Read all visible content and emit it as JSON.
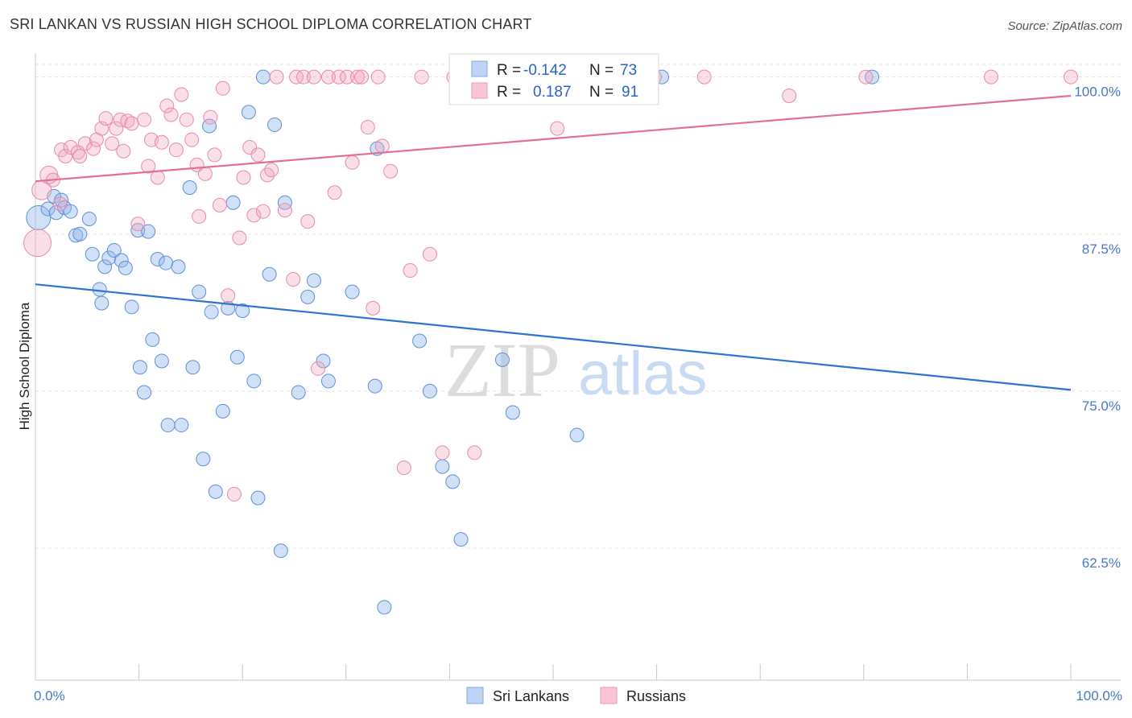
{
  "title": "SRI LANKAN VS RUSSIAN HIGH SCHOOL DIPLOMA CORRELATION CHART",
  "source": "Source: ZipAtlas.com",
  "watermark": {
    "zip": "ZIP",
    "atlas": "atlas"
  },
  "legend": {
    "r_label": "R =",
    "n_label": "N =",
    "series": [
      {
        "name": "Sri Lankans",
        "r": "-0.142",
        "n": "73"
      },
      {
        "name": "Russians",
        "r": "0.187",
        "n": "91"
      }
    ]
  },
  "chart_data": {
    "type": "scatter",
    "title": "SRI LANKAN VS RUSSIAN HIGH SCHOOL DIPLOMA CORRELATION CHART",
    "xlabel": "",
    "ylabel": "High School Diploma",
    "xlim": [
      0,
      100
    ],
    "ylim": [
      52,
      101
    ],
    "x_tick_labels": [
      {
        "value": 0,
        "label": "0.0%"
      },
      {
        "value": 100,
        "label": "100.0%"
      }
    ],
    "y_ticks": [
      {
        "value": 100,
        "label": "100.0%"
      },
      {
        "value": 87.5,
        "label": "87.5%"
      },
      {
        "value": 75,
        "label": "75.0%"
      },
      {
        "value": 62.5,
        "label": "62.5%"
      }
    ],
    "grid": true,
    "colors": {
      "sri_lankans": "#8fb6ea",
      "russians": "#f3a8c2",
      "sri_line": "#2e72d2",
      "rus_line": "#e0709a"
    },
    "series": [
      {
        "name": "Sri Lankans",
        "trend": {
          "x": [
            0,
            100
          ],
          "y": [
            83.5,
            75.1
          ]
        },
        "points": [
          [
            0.3,
            88.8
          ],
          [
            1.2,
            89.5
          ],
          [
            1.8,
            90.5
          ],
          [
            2.0,
            89.2
          ],
          [
            2.5,
            90.2
          ],
          [
            2.8,
            89.6
          ],
          [
            3.4,
            89.3
          ],
          [
            3.9,
            87.4
          ],
          [
            4.3,
            87.5
          ],
          [
            5.2,
            88.7
          ],
          [
            5.5,
            85.9
          ],
          [
            6.2,
            83.1
          ],
          [
            6.4,
            82.0
          ],
          [
            6.7,
            84.9
          ],
          [
            7.1,
            85.6
          ],
          [
            7.6,
            86.2
          ],
          [
            8.3,
            85.4
          ],
          [
            8.7,
            84.8
          ],
          [
            9.3,
            81.7
          ],
          [
            9.9,
            87.8
          ],
          [
            10.1,
            76.9
          ],
          [
            10.5,
            74.9
          ],
          [
            10.9,
            87.7
          ],
          [
            11.3,
            79.1
          ],
          [
            11.8,
            85.5
          ],
          [
            12.2,
            77.4
          ],
          [
            12.6,
            85.2
          ],
          [
            12.8,
            72.3
          ],
          [
            13.8,
            84.9
          ],
          [
            14.1,
            72.3
          ],
          [
            14.9,
            91.2
          ],
          [
            15.2,
            76.9
          ],
          [
            15.8,
            82.9
          ],
          [
            16.2,
            69.6
          ],
          [
            16.8,
            96.1
          ],
          [
            17.0,
            81.3
          ],
          [
            17.4,
            67.0
          ],
          [
            18.1,
            73.4
          ],
          [
            18.6,
            81.6
          ],
          [
            19.1,
            90.0
          ],
          [
            19.5,
            77.7
          ],
          [
            20.0,
            81.4
          ],
          [
            20.6,
            97.2
          ],
          [
            21.1,
            75.8
          ],
          [
            21.5,
            66.5
          ],
          [
            22.0,
            100.0
          ],
          [
            22.6,
            84.3
          ],
          [
            23.1,
            96.2
          ],
          [
            23.7,
            62.3
          ],
          [
            24.1,
            90.0
          ],
          [
            25.4,
            74.9
          ],
          [
            26.3,
            82.5
          ],
          [
            26.9,
            83.8
          ],
          [
            27.8,
            77.4
          ],
          [
            28.3,
            75.8
          ],
          [
            30.6,
            82.9
          ],
          [
            32.8,
            75.4
          ],
          [
            33.0,
            94.3
          ],
          [
            33.7,
            57.8
          ],
          [
            37.1,
            79.0
          ],
          [
            38.1,
            75.0
          ],
          [
            39.3,
            69.0
          ],
          [
            40.3,
            67.8
          ],
          [
            41.1,
            63.2
          ],
          [
            45.1,
            77.5
          ],
          [
            46.1,
            73.3
          ],
          [
            52.3,
            71.5
          ],
          [
            60.5,
            100.0
          ],
          [
            80.8,
            100.0
          ]
        ]
      },
      {
        "name": "Russians",
        "trend": {
          "x": [
            0,
            100
          ],
          "y": [
            91.7,
            98.5
          ]
        },
        "points": [
          [
            0.2,
            86.8
          ],
          [
            0.6,
            91.0
          ],
          [
            1.3,
            92.2
          ],
          [
            1.7,
            91.8
          ],
          [
            2.4,
            89.9
          ],
          [
            2.5,
            94.2
          ],
          [
            2.9,
            93.7
          ],
          [
            3.4,
            94.4
          ],
          [
            4.1,
            94.0
          ],
          [
            4.3,
            93.7
          ],
          [
            4.8,
            94.7
          ],
          [
            5.6,
            94.3
          ],
          [
            5.9,
            95.0
          ],
          [
            6.4,
            95.9
          ],
          [
            6.8,
            96.7
          ],
          [
            7.4,
            94.7
          ],
          [
            7.8,
            95.9
          ],
          [
            8.2,
            96.6
          ],
          [
            8.5,
            94.1
          ],
          [
            8.9,
            96.5
          ],
          [
            9.3,
            96.3
          ],
          [
            9.9,
            88.3
          ],
          [
            10.5,
            96.6
          ],
          [
            10.9,
            92.9
          ],
          [
            11.2,
            95.0
          ],
          [
            11.8,
            92.0
          ],
          [
            12.2,
            94.8
          ],
          [
            12.7,
            97.7
          ],
          [
            13.1,
            97.0
          ],
          [
            13.6,
            94.2
          ],
          [
            14.1,
            98.6
          ],
          [
            14.6,
            96.6
          ],
          [
            15.1,
            95.0
          ],
          [
            15.6,
            93.0
          ],
          [
            15.8,
            88.9
          ],
          [
            16.4,
            92.3
          ],
          [
            16.9,
            96.8
          ],
          [
            17.3,
            93.8
          ],
          [
            17.8,
            89.8
          ],
          [
            18.1,
            99.1
          ],
          [
            18.6,
            82.6
          ],
          [
            19.2,
            66.8
          ],
          [
            19.7,
            87.2
          ],
          [
            20.1,
            92.0
          ],
          [
            20.7,
            94.4
          ],
          [
            21.1,
            89.0
          ],
          [
            21.5,
            93.8
          ],
          [
            22.0,
            89.3
          ],
          [
            22.4,
            92.2
          ],
          [
            22.8,
            92.6
          ],
          [
            23.3,
            100.0
          ],
          [
            24.1,
            89.4
          ],
          [
            24.9,
            83.9
          ],
          [
            25.2,
            100.0
          ],
          [
            25.9,
            100.0
          ],
          [
            26.3,
            88.5
          ],
          [
            26.9,
            100.0
          ],
          [
            27.3,
            76.8
          ],
          [
            28.3,
            100.0
          ],
          [
            28.9,
            90.8
          ],
          [
            29.3,
            100.0
          ],
          [
            30.1,
            100.0
          ],
          [
            30.6,
            93.2
          ],
          [
            31.1,
            100.0
          ],
          [
            31.5,
            100.0
          ],
          [
            32.1,
            96.0
          ],
          [
            32.6,
            81.6
          ],
          [
            33.1,
            100.0
          ],
          [
            33.5,
            94.5
          ],
          [
            34.3,
            92.5
          ],
          [
            35.6,
            68.9
          ],
          [
            36.2,
            84.6
          ],
          [
            37.3,
            100.0
          ],
          [
            38.1,
            85.9
          ],
          [
            39.3,
            70.1
          ],
          [
            40.4,
            100.0
          ],
          [
            41.1,
            100.0
          ],
          [
            42.4,
            70.1
          ],
          [
            46.6,
            100.0
          ],
          [
            48.0,
            100.0
          ],
          [
            50.4,
            95.9
          ],
          [
            52.8,
            100.0
          ],
          [
            55.3,
            100.0
          ],
          [
            59.8,
            100.0
          ],
          [
            64.6,
            100.0
          ],
          [
            72.8,
            98.5
          ],
          [
            80.2,
            100.0
          ],
          [
            92.3,
            100.0
          ],
          [
            100.0,
            100.0
          ]
        ]
      }
    ]
  }
}
